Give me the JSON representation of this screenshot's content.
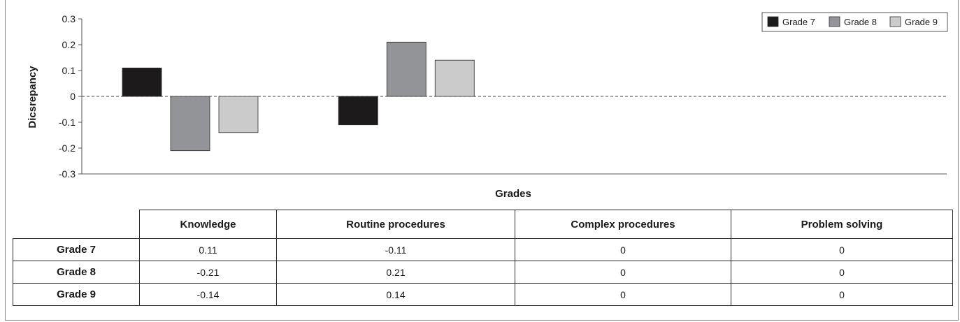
{
  "chart_data": {
    "type": "bar",
    "title": "",
    "xlabel": "Grades",
    "ylabel": "Dicsrepancy",
    "ylim": [
      -0.3,
      0.3
    ],
    "yticks": [
      "0.3",
      "0.2",
      "0.1",
      "0",
      "-0.1",
      "-0.2",
      "-0.3"
    ],
    "ytick_values": [
      0.3,
      0.2,
      0.1,
      0,
      -0.1,
      -0.2,
      -0.3
    ],
    "categories": [
      "Knowledge",
      "Routine procedures",
      "Complex procedures",
      "Problem solving"
    ],
    "series": [
      {
        "name": "Grade 7",
        "color": "#1c1a1a",
        "values": [
          0.11,
          -0.11,
          0,
          0
        ],
        "labels": [
          "0.11",
          "-0.11",
          "0",
          "0"
        ]
      },
      {
        "name": "Grade 8",
        "color": "#929497",
        "values": [
          -0.21,
          0.21,
          0,
          0
        ],
        "labels": [
          "-0.21",
          "0.21",
          "0",
          "0"
        ]
      },
      {
        "name": "Grade 9",
        "color": "#cbcbcc",
        "values": [
          -0.14,
          0.14,
          0,
          0
        ],
        "labels": [
          "-0.14",
          "0.14",
          "0",
          "0"
        ]
      }
    ],
    "zero_line": "dashed",
    "legend_position": "top-right",
    "grid": false
  }
}
